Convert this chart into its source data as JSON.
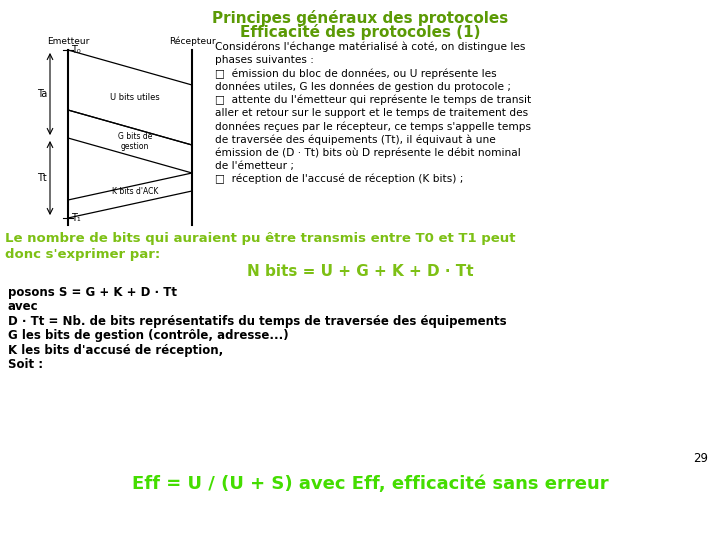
{
  "title_line1": "Principes généraux des protocoles",
  "title_line2": "Efficacité des protocoles (1)",
  "title_color": "#5b9a05",
  "background_color": "#ffffff",
  "body_text_color": "#000000",
  "green_bold_color": "#7dc015",
  "bright_green_color": "#44dd00",
  "page_number": "29",
  "right_text": [
    "Considérons l'échange matérialisé à coté, on distingue les",
    "phases suivantes :",
    "□  émission du bloc de données, ou U représente les",
    "données utiles, G les données de gestion du protocole ;",
    "□  attente du l'émetteur qui représente le temps de transit",
    "aller et retour sur le support et le temps de traitement des",
    "données reçues par le récepteur, ce temps s'appelle temps",
    "de traversée des équipements (Tt), il équivaut à une",
    "émission de (D · Tt) bits où D représente le débit nominal",
    "de l'émetteur ;",
    "□  réception de l'accusé de réception (K bits) ;"
  ],
  "green_bold_line1": "Le nombre de bits qui auraient pu être transmis entre T0 et T1 peut",
  "green_bold_line2": "donc s'exprimer par:",
  "formula1": "N bits = U + G + K + D · Tt",
  "small_lines": [
    "posons S = G + K + D · Tt",
    "avec",
    "D · Tt = Nb. de bits représentatifs du temps de traversée des équipements",
    "G les bits de gestion (contrôle, adresse...)",
    "K les bits d'accusé de réception,",
    "Soit :"
  ],
  "formula2": "Eff = U / (U + S) avec Eff, efficacité sans erreur"
}
